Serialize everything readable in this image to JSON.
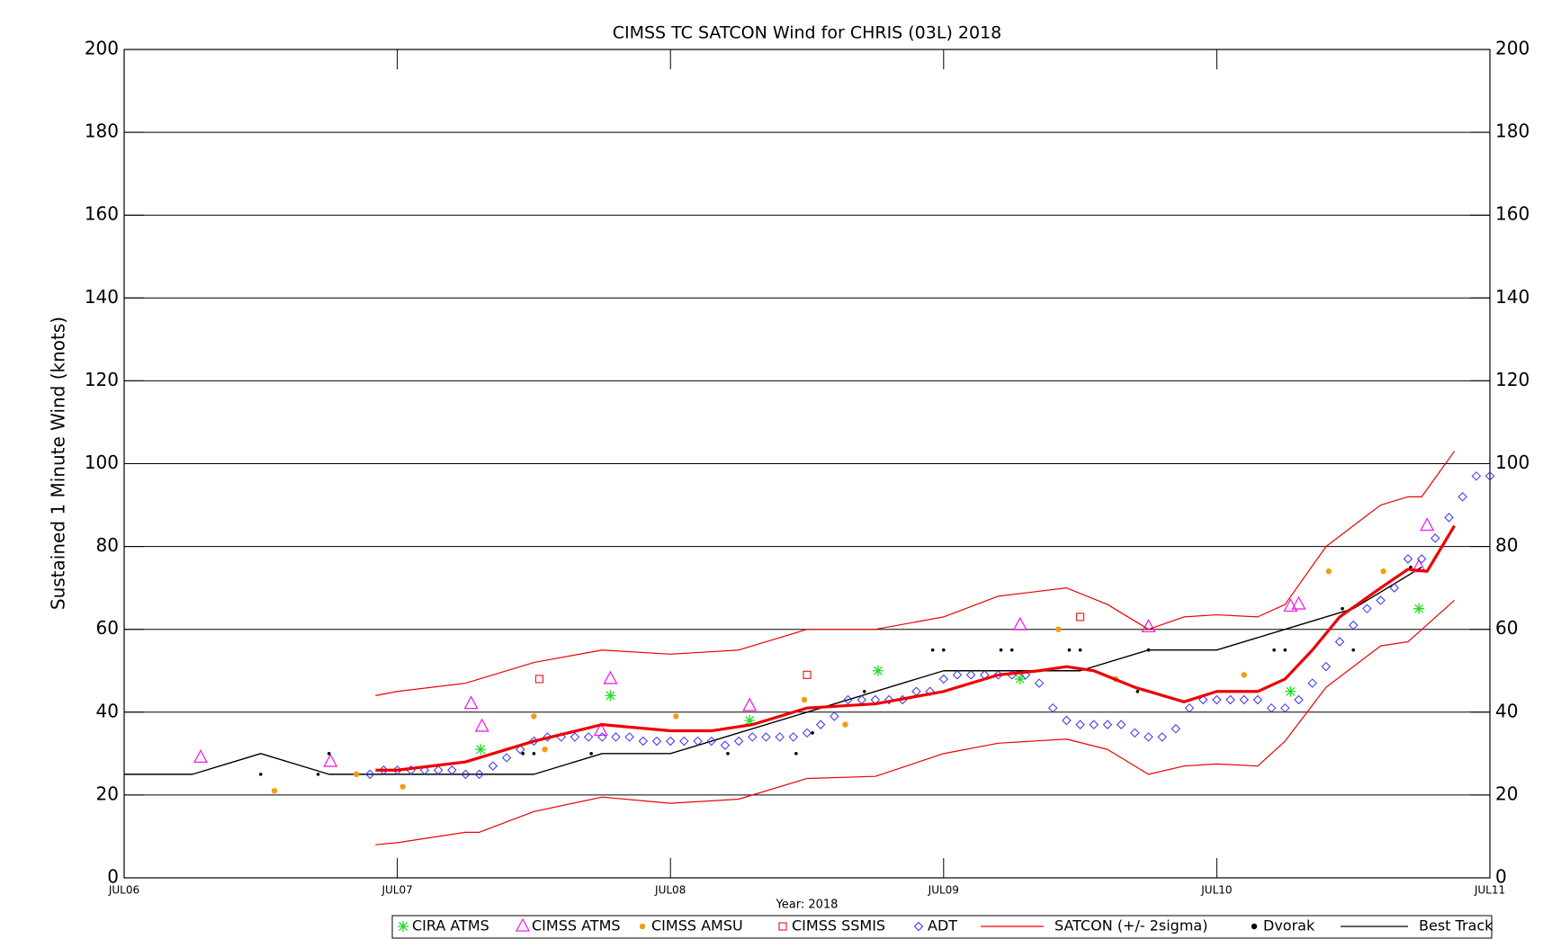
{
  "chart_data": {
    "type": "line",
    "title": "CIMSS TC SATCON Wind for CHRIS (03L) 2018",
    "ylabel": "Sustained 1 Minute Wind (knots)",
    "xlabel": "Year: 2018",
    "xlim": [
      0,
      5
    ],
    "xticks": [
      {
        "value": 0,
        "label": "JUL06"
      },
      {
        "value": 1,
        "label": "JUL07"
      },
      {
        "value": 2,
        "label": "JUL08"
      },
      {
        "value": 3,
        "label": "JUL09"
      },
      {
        "value": 4,
        "label": "JUL10"
      },
      {
        "value": 5,
        "label": "JUL11"
      }
    ],
    "ylim": [
      0,
      200
    ],
    "yticks": [
      0,
      20,
      40,
      60,
      80,
      100,
      120,
      140,
      160,
      180,
      200
    ],
    "grid": true,
    "legend": "bottom",
    "series": [
      {
        "name": "CIRA ATMS",
        "marker": "asterisk",
        "color": "#22dd22",
        "x": [
          1.305,
          1.78,
          2.29,
          2.76,
          3.28,
          4.27,
          4.74
        ],
        "values": [
          31,
          44,
          38,
          50,
          48,
          45,
          65
        ]
      },
      {
        "name": "CIMSS ATMS",
        "marker": "triangle",
        "color": "#ee22ee",
        "x": [
          0.28,
          0.755,
          1.27,
          1.31,
          1.745,
          1.78,
          2.29,
          3.28,
          3.75,
          4.27,
          4.3,
          4.74,
          4.77
        ],
        "values": [
          29,
          28,
          42,
          36.5,
          35.5,
          48,
          41.5,
          61,
          60.5,
          65.5,
          66,
          75,
          85
        ]
      },
      {
        "name": "CIMSS AMSU",
        "marker": "circle",
        "color": "#f39c12",
        "x": [
          0.55,
          0.85,
          1.02,
          1.5,
          1.54,
          2.02,
          2.49,
          2.64,
          3.42,
          3.63,
          4.1,
          4.41,
          4.61
        ],
        "values": [
          21,
          25,
          22,
          39,
          31,
          39,
          43,
          37,
          60,
          48,
          49,
          74,
          74
        ]
      },
      {
        "name": "CIMSS SSMIS",
        "marker": "square",
        "color": "#ee2222",
        "x": [
          1.52,
          2.5,
          3.5
        ],
        "values": [
          48,
          49,
          63
        ]
      },
      {
        "name": "ADT",
        "marker": "diamond",
        "color": "#3333ee",
        "x": [
          0.9,
          0.95,
          1.0,
          1.05,
          1.1,
          1.15,
          1.2,
          1.25,
          1.3,
          1.35,
          1.4,
          1.45,
          1.5,
          1.55,
          1.6,
          1.65,
          1.7,
          1.75,
          1.8,
          1.85,
          1.9,
          1.95,
          2.0,
          2.05,
          2.1,
          2.15,
          2.2,
          2.25,
          2.3,
          2.35,
          2.4,
          2.45,
          2.5,
          2.55,
          2.6,
          2.65,
          2.7,
          2.75,
          2.8,
          2.85,
          2.9,
          2.95,
          3.0,
          3.05,
          3.1,
          3.15,
          3.2,
          3.25,
          3.3,
          3.35,
          3.4,
          3.45,
          3.5,
          3.55,
          3.6,
          3.65,
          3.7,
          3.75,
          3.8,
          3.85,
          3.9,
          3.95,
          4.0,
          4.05,
          4.1,
          4.15,
          4.2,
          4.25,
          4.3,
          4.35,
          4.4,
          4.45,
          4.5,
          4.55,
          4.6,
          4.65,
          4.7,
          4.75,
          4.8,
          4.85,
          4.9,
          4.95,
          5.0
        ],
        "values": [
          25,
          26,
          26,
          26,
          26,
          26,
          26,
          25,
          25,
          27,
          29,
          31,
          33,
          34,
          34,
          34,
          34,
          34,
          34,
          34,
          33,
          33,
          33,
          33,
          33,
          33,
          32,
          33,
          34,
          34,
          34,
          34,
          35,
          37,
          39,
          43,
          43,
          43,
          43,
          43,
          45,
          45,
          48,
          49,
          49,
          49,
          49,
          49,
          49,
          47,
          41,
          38,
          37,
          37,
          37,
          37,
          35,
          34,
          34,
          36,
          41,
          43,
          43,
          43,
          43,
          43,
          41,
          41,
          43,
          47,
          51,
          57,
          61,
          65,
          67,
          70,
          77,
          77,
          82,
          87,
          92,
          97,
          97
        ]
      },
      {
        "name": "SATCON (+/- 2sigma)",
        "marker": "line",
        "color": "#ee0000",
        "x": [
          0.92,
          1.0,
          1.25,
          1.3,
          1.5,
          1.75,
          2.0,
          2.15,
          2.3,
          2.5,
          2.75,
          3.0,
          3.2,
          3.35,
          3.45,
          3.55,
          3.7,
          3.88,
          4.0,
          4.15,
          4.25,
          4.35,
          4.45,
          4.6,
          4.7,
          4.77,
          4.87
        ],
        "values": [
          26,
          26,
          28,
          29,
          33,
          37,
          35.5,
          35.5,
          37,
          41,
          42,
          45,
          49,
          50,
          51,
          50,
          46,
          42.5,
          45,
          45,
          48,
          55,
          63,
          70,
          74.5,
          74,
          85
        ],
        "upper": {
          "x": [
            0.92,
            1.0,
            1.25,
            1.5,
            1.75,
            2.0,
            2.25,
            2.5,
            2.75,
            3.0,
            3.2,
            3.45,
            3.6,
            3.75,
            3.88,
            4.0,
            4.15,
            4.25,
            4.4,
            4.6,
            4.7,
            4.75,
            4.87
          ],
          "values": [
            44,
            45,
            47,
            52,
            55,
            54,
            55,
            60,
            60,
            63,
            68,
            70,
            66,
            60,
            63,
            63.5,
            63,
            66,
            80,
            90,
            92,
            92,
            103
          ]
        },
        "lower": {
          "x": [
            0.92,
            1.0,
            1.25,
            1.3,
            1.5,
            1.75,
            2.0,
            2.25,
            2.5,
            2.75,
            3.0,
            3.2,
            3.45,
            3.6,
            3.75,
            3.88,
            4.0,
            4.15,
            4.25,
            4.4,
            4.6,
            4.7,
            4.87
          ],
          "values": [
            8,
            8.5,
            11,
            11,
            16,
            19.5,
            18,
            19,
            24,
            24.5,
            30,
            32.5,
            33.5,
            31,
            25,
            27,
            27.5,
            27,
            33,
            46,
            56,
            57,
            67
          ]
        }
      },
      {
        "name": "Dvorak",
        "marker": "dot",
        "color": "#000000",
        "x": [
          0.5,
          0.71,
          0.75,
          1.46,
          1.5,
          1.71,
          2.21,
          2.46,
          2.52,
          2.71,
          2.96,
          3.0,
          3.21,
          3.25,
          3.46,
          3.5,
          3.71,
          3.75,
          4.21,
          4.25,
          4.46,
          4.5,
          4.71
        ],
        "values": [
          25,
          25,
          30,
          30,
          30,
          30,
          30,
          30,
          35,
          45,
          55,
          55,
          55,
          55,
          55,
          55,
          45,
          55,
          55,
          55,
          65,
          55,
          75
        ]
      },
      {
        "name": "Best Track",
        "marker": "line",
        "color": "#000000",
        "x": [
          0,
          0.25,
          0.5,
          0.75,
          1.5,
          1.75,
          2,
          2.25,
          2.5,
          2.75,
          3,
          3.5,
          3.75,
          4,
          4.25,
          4.5,
          4.75
        ],
        "values": [
          25,
          25,
          30,
          25,
          25,
          30,
          30,
          35,
          40,
          45,
          50,
          50,
          55,
          55,
          60,
          65,
          75
        ]
      }
    ]
  }
}
